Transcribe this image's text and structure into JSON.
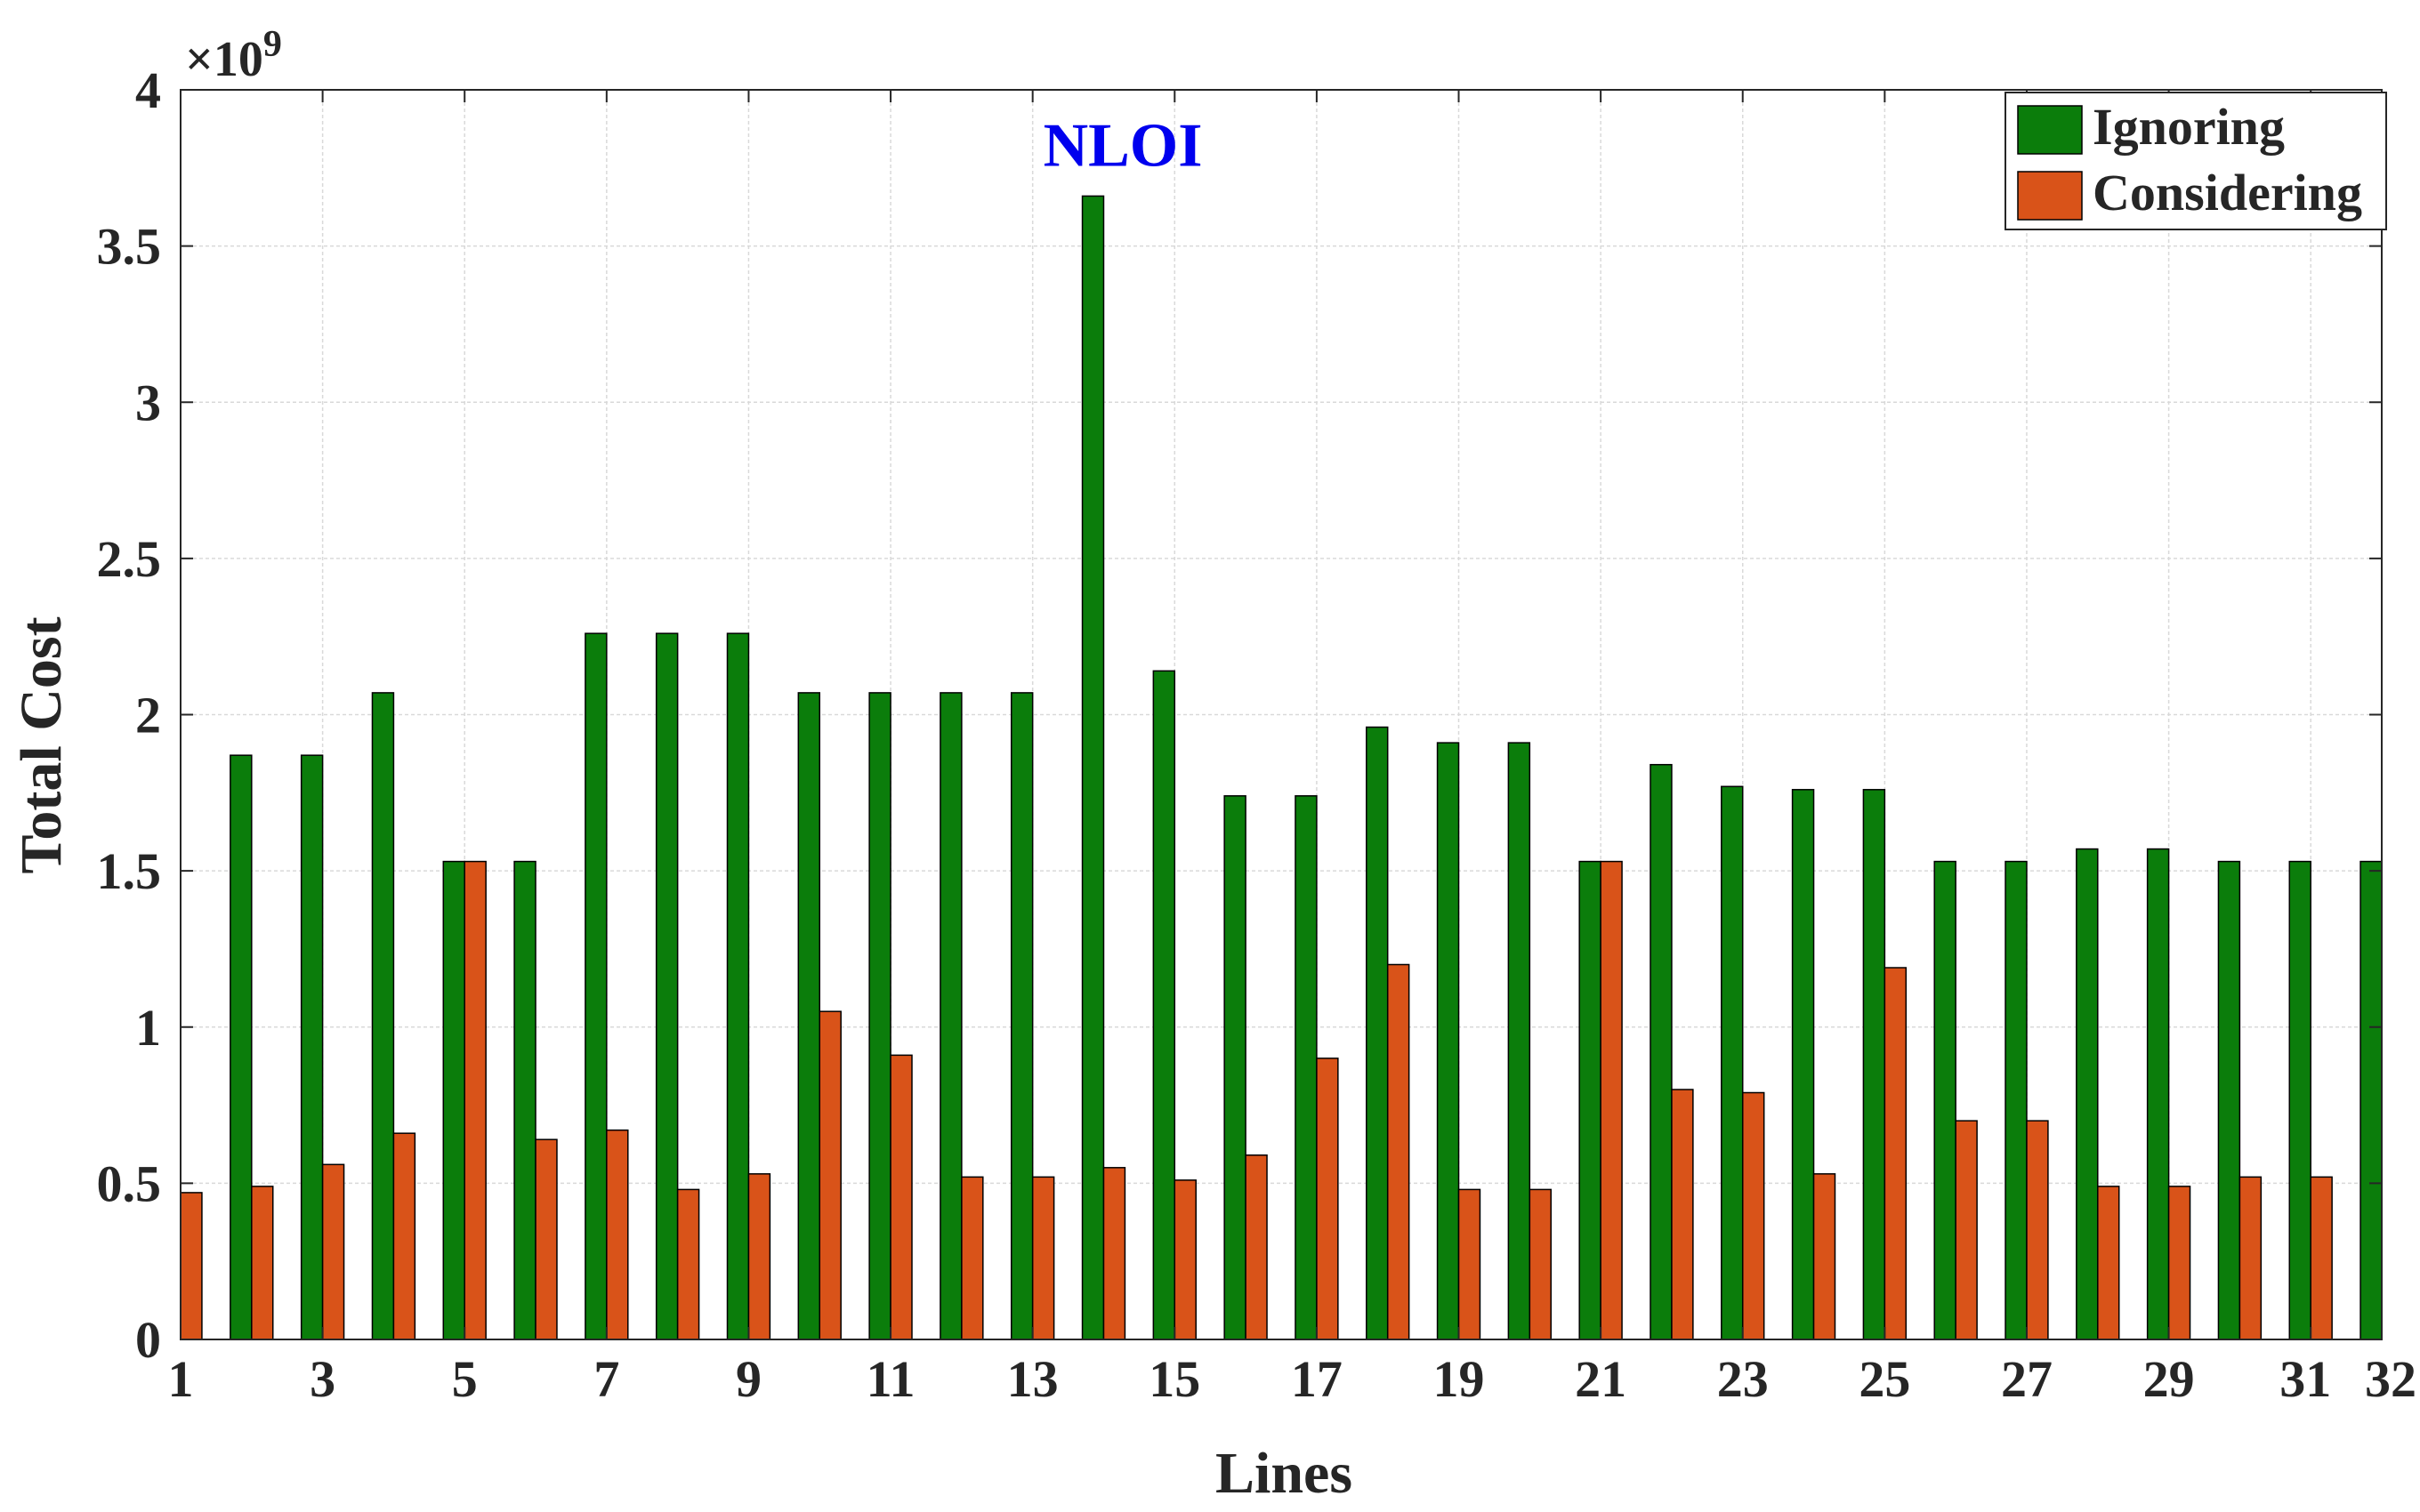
{
  "chart_data": {
    "type": "bar",
    "title": "",
    "annotation": "NLOI",
    "xlabel": "Lines",
    "ylabel": "Total Cost",
    "y_exponent_label": "×10",
    "y_exponent_power": "9",
    "x": [
      1,
      2,
      3,
      4,
      5,
      6,
      7,
      8,
      9,
      10,
      11,
      12,
      13,
      14,
      15,
      16,
      17,
      18,
      19,
      20,
      21,
      22,
      23,
      24,
      25,
      26,
      27,
      28,
      29,
      30,
      31,
      32
    ],
    "xlim": [
      1,
      32
    ],
    "x_ticks": [
      "1",
      "3",
      "5",
      "7",
      "9",
      "11",
      "13",
      "15",
      "17",
      "19",
      "21",
      "23",
      "25",
      "27",
      "29",
      "31",
      "32"
    ],
    "ylim": [
      0,
      4
    ],
    "y_ticks": [
      "0",
      "0.5",
      "1",
      "1.5",
      "2",
      "2.5",
      "3",
      "3.5",
      "4"
    ],
    "grid": true,
    "legend_position": "top-right",
    "series": [
      {
        "name": "Ignoring",
        "color": "#0b7d0b",
        "values": [
          null,
          1.87,
          1.87,
          2.07,
          1.53,
          1.53,
          2.26,
          2.26,
          2.26,
          2.07,
          2.07,
          2.07,
          2.07,
          3.66,
          2.14,
          1.74,
          1.74,
          1.96,
          1.91,
          1.91,
          1.53,
          1.84,
          1.77,
          1.76,
          1.76,
          1.53,
          1.53,
          1.57,
          1.57,
          1.53,
          1.53,
          1.53
        ]
      },
      {
        "name": "Considering",
        "color": "#d95319",
        "values": [
          0.47,
          0.49,
          0.56,
          0.66,
          1.53,
          0.64,
          0.67,
          0.48,
          0.53,
          1.05,
          0.91,
          0.52,
          0.52,
          0.55,
          0.51,
          0.59,
          0.9,
          1.2,
          0.48,
          0.48,
          1.53,
          0.8,
          0.79,
          0.53,
          1.19,
          0.7,
          0.7,
          0.49,
          0.49,
          0.52,
          0.52,
          null
        ]
      }
    ]
  }
}
